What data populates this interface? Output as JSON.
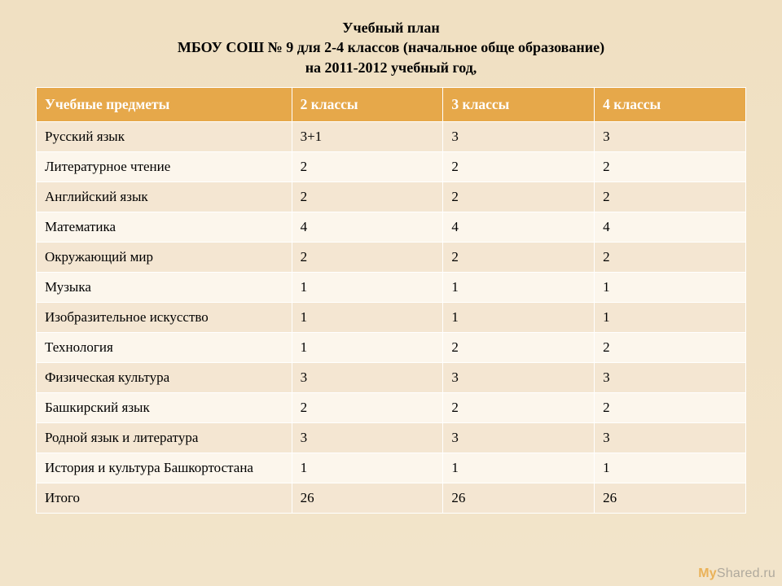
{
  "title": {
    "line1": "Учебный   план",
    "line2": "МБОУ СОШ № 9 для 2-4 классов (начальное обще образование)",
    "line3": "на 2011-2012 учебный год,"
  },
  "table": {
    "columns": [
      "Учебные предметы",
      "2 классы",
      "3 классы",
      "4 классы"
    ],
    "rows": [
      [
        "Русский язык",
        "3+1",
        "3",
        "3"
      ],
      [
        "Литературное чтение",
        "2",
        "2",
        "2"
      ],
      [
        "Английский язык",
        "2",
        "2",
        "2"
      ],
      [
        "Математика",
        "4",
        "4",
        "4"
      ],
      [
        "Окружающий мир",
        "2",
        "2",
        "2"
      ],
      [
        "Музыка",
        "1",
        "1",
        "1"
      ],
      [
        "Изобразительное искусство",
        "1",
        "1",
        "1"
      ],
      [
        "Технология",
        "1",
        "2",
        "2"
      ],
      [
        "Физическая культура",
        "3",
        "3",
        "3"
      ],
      [
        "Башкирский язык",
        "2",
        "2",
        "2"
      ],
      [
        "Родной язык и литература",
        "3",
        "3",
        "3"
      ],
      [
        "История и культура Башкортостана",
        "1",
        "1",
        "1"
      ],
      [
        "Итого",
        "26",
        "26",
        "26"
      ]
    ],
    "header_bg": "#e6a84a",
    "header_fg": "#ffffff",
    "row_odd_bg": "#f4e6d2",
    "row_even_bg": "#fcf6ec",
    "border_color": "#ffffff",
    "body_font_size": 17,
    "header_font_size": 17.5
  },
  "page": {
    "bg_top": "#f0e0c2",
    "bg_bottom": "#f2e4ca",
    "title_font_size": 18,
    "title_color": "#000000"
  },
  "watermark": {
    "prefix": "My",
    "rest": "Shared.ru"
  }
}
